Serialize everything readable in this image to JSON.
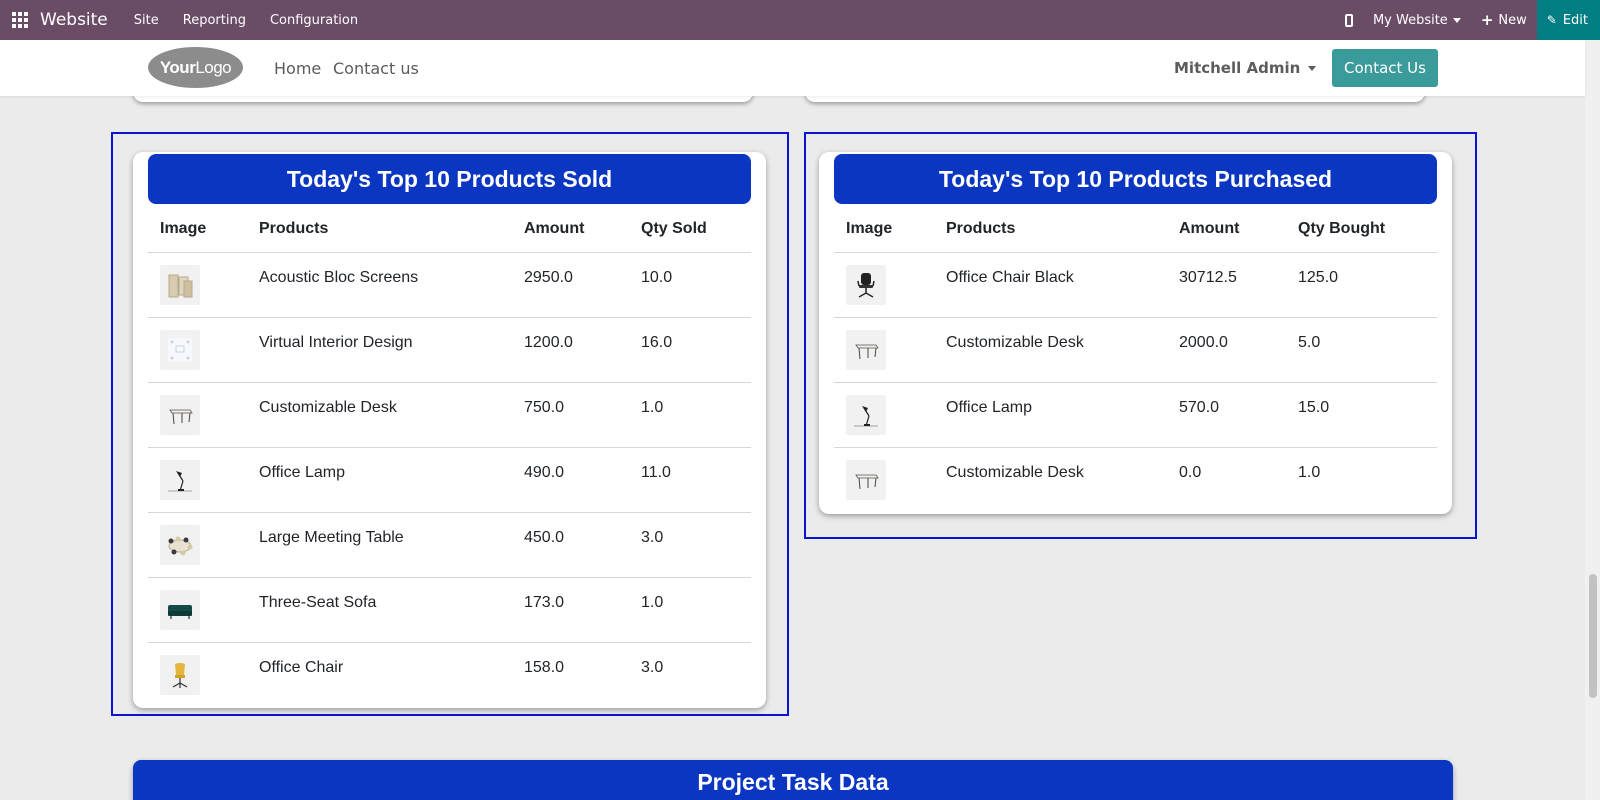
{
  "topbar": {
    "app_name": "Website",
    "menus": [
      "Site",
      "Reporting",
      "Configuration"
    ],
    "site_selector": "My Website",
    "new_label": "New",
    "edit_label": "Edit",
    "bg_color": "#6b4c66",
    "edit_color": "#017e84"
  },
  "site_header": {
    "logo_text_bold": "Your",
    "logo_text": "Logo",
    "nav": [
      "Home",
      "Contact us"
    ],
    "user": "Mitchell Admin",
    "cta": "Contact Us"
  },
  "sold": {
    "title": "Today's Top 10 Products Sold",
    "headers": [
      "Image",
      "Products",
      "Amount",
      "Qty Sold"
    ],
    "rows": [
      {
        "icon": "screens-icon",
        "product": "Acoustic Bloc Screens",
        "amount": "2950.0",
        "qty": "10.0"
      },
      {
        "icon": "interior-design-icon",
        "product": "Virtual Interior Design",
        "amount": "1200.0",
        "qty": "16.0"
      },
      {
        "icon": "desk-icon",
        "product": "Customizable Desk",
        "amount": "750.0",
        "qty": "1.0"
      },
      {
        "icon": "lamp-icon",
        "product": "Office Lamp",
        "amount": "490.0",
        "qty": "11.0"
      },
      {
        "icon": "meeting-table-icon",
        "product": "Large Meeting Table",
        "amount": "450.0",
        "qty": "3.0"
      },
      {
        "icon": "sofa-icon",
        "product": "Three-Seat Sofa",
        "amount": "173.0",
        "qty": "1.0"
      },
      {
        "icon": "chair-icon",
        "product": "Office Chair",
        "amount": "158.0",
        "qty": "3.0"
      }
    ]
  },
  "purchased": {
    "title": "Today's Top 10 Products Purchased",
    "headers": [
      "Image",
      "Products",
      "Amount",
      "Qty Bought"
    ],
    "rows": [
      {
        "icon": "office-chair-black-icon",
        "product": "Office Chair Black",
        "amount": "30712.5",
        "qty": "125.0"
      },
      {
        "icon": "desk-icon",
        "product": "Customizable Desk",
        "amount": "2000.0",
        "qty": "5.0"
      },
      {
        "icon": "lamp-icon",
        "product": "Office Lamp",
        "amount": "570.0",
        "qty": "15.0"
      },
      {
        "icon": "desk-icon",
        "product": "Customizable Desk",
        "amount": "0.0",
        "qty": "1.0"
      }
    ]
  },
  "bottom": {
    "title": "Project Task Data"
  },
  "colors": {
    "header_blue": "#0a36c2",
    "frame_blue": "#0a14d4",
    "cta_teal": "#3a9b9a"
  }
}
